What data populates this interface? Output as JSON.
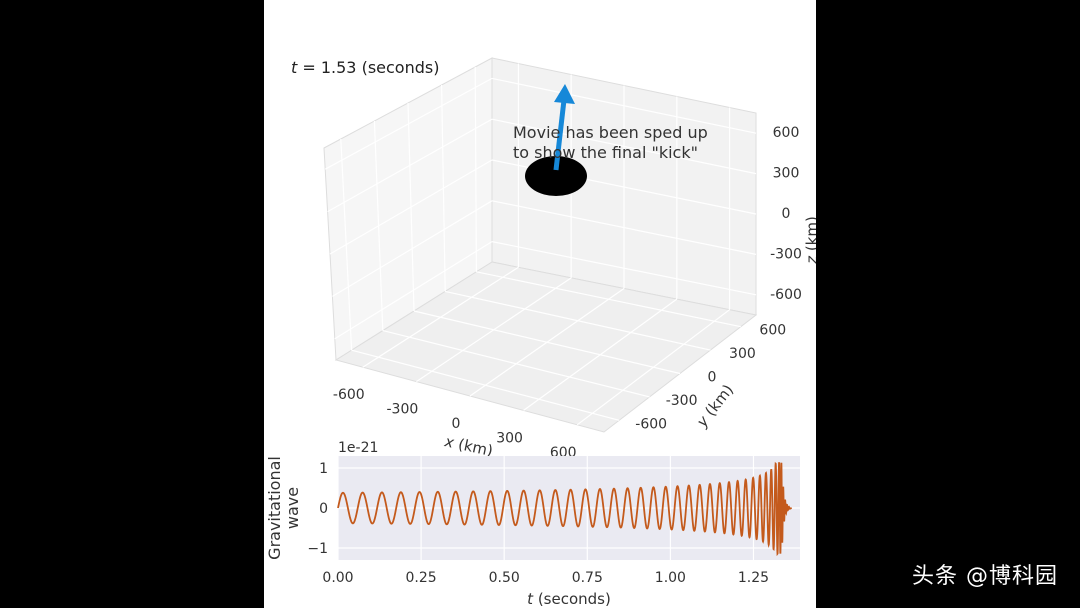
{
  "watermark": "头条 @博科园",
  "time_label": {
    "prefix": "t",
    "eq": " = 1.53 (seconds)"
  },
  "annotation": [
    "Movie has been sped up",
    "to show the final \"kick\""
  ],
  "colors": {
    "wave": "#c45a1c",
    "arrow": "#1688d8",
    "blob": "#000000",
    "plot_bg": "#eaeaf2",
    "pane": "#f2f2f2",
    "grid": "#ffffff"
  },
  "chart_data": [
    {
      "type": "scatter3d",
      "axes": {
        "x": {
          "label_var": "x",
          "label_unit": " (km)",
          "ticks": [
            -600,
            -300,
            0,
            300,
            600
          ]
        },
        "y": {
          "label_var": "y",
          "label_unit": " (km)",
          "ticks": [
            -600,
            -300,
            0,
            300,
            600
          ]
        },
        "z": {
          "label_var": "z",
          "label_unit": " (km)",
          "ticks": [
            -600,
            -300,
            0,
            300,
            600
          ]
        }
      },
      "object": {
        "shape": "black-hole-remnant",
        "arrow": "kick-direction"
      }
    },
    {
      "type": "line",
      "ylabel": [
        "Gravitational",
        "wave"
      ],
      "xlabel_var": "t",
      "xlabel_unit": " (seconds)",
      "offset_text": "1e-21",
      "xticks": [
        0.0,
        0.25,
        0.5,
        0.75,
        1.0,
        1.25
      ],
      "xtick_labels": [
        "0.00",
        "0.25",
        "0.50",
        "0.75",
        "1.00",
        "1.25"
      ],
      "yticks": [
        -1,
        0,
        1
      ],
      "ytick_labels": [
        "−1",
        "0",
        "1"
      ],
      "xlim": [
        0.0,
        1.39
      ],
      "ylim": [
        -1.3,
        1.3
      ],
      "series": [
        {
          "model": "chirp",
          "t_start": 0.0,
          "t_merger": 1.335,
          "t_end": 1.36,
          "cycles_early_per_sec": 16.7,
          "amplitude_early": 0.38,
          "amplitude_peak": 1.15
        }
      ]
    }
  ]
}
